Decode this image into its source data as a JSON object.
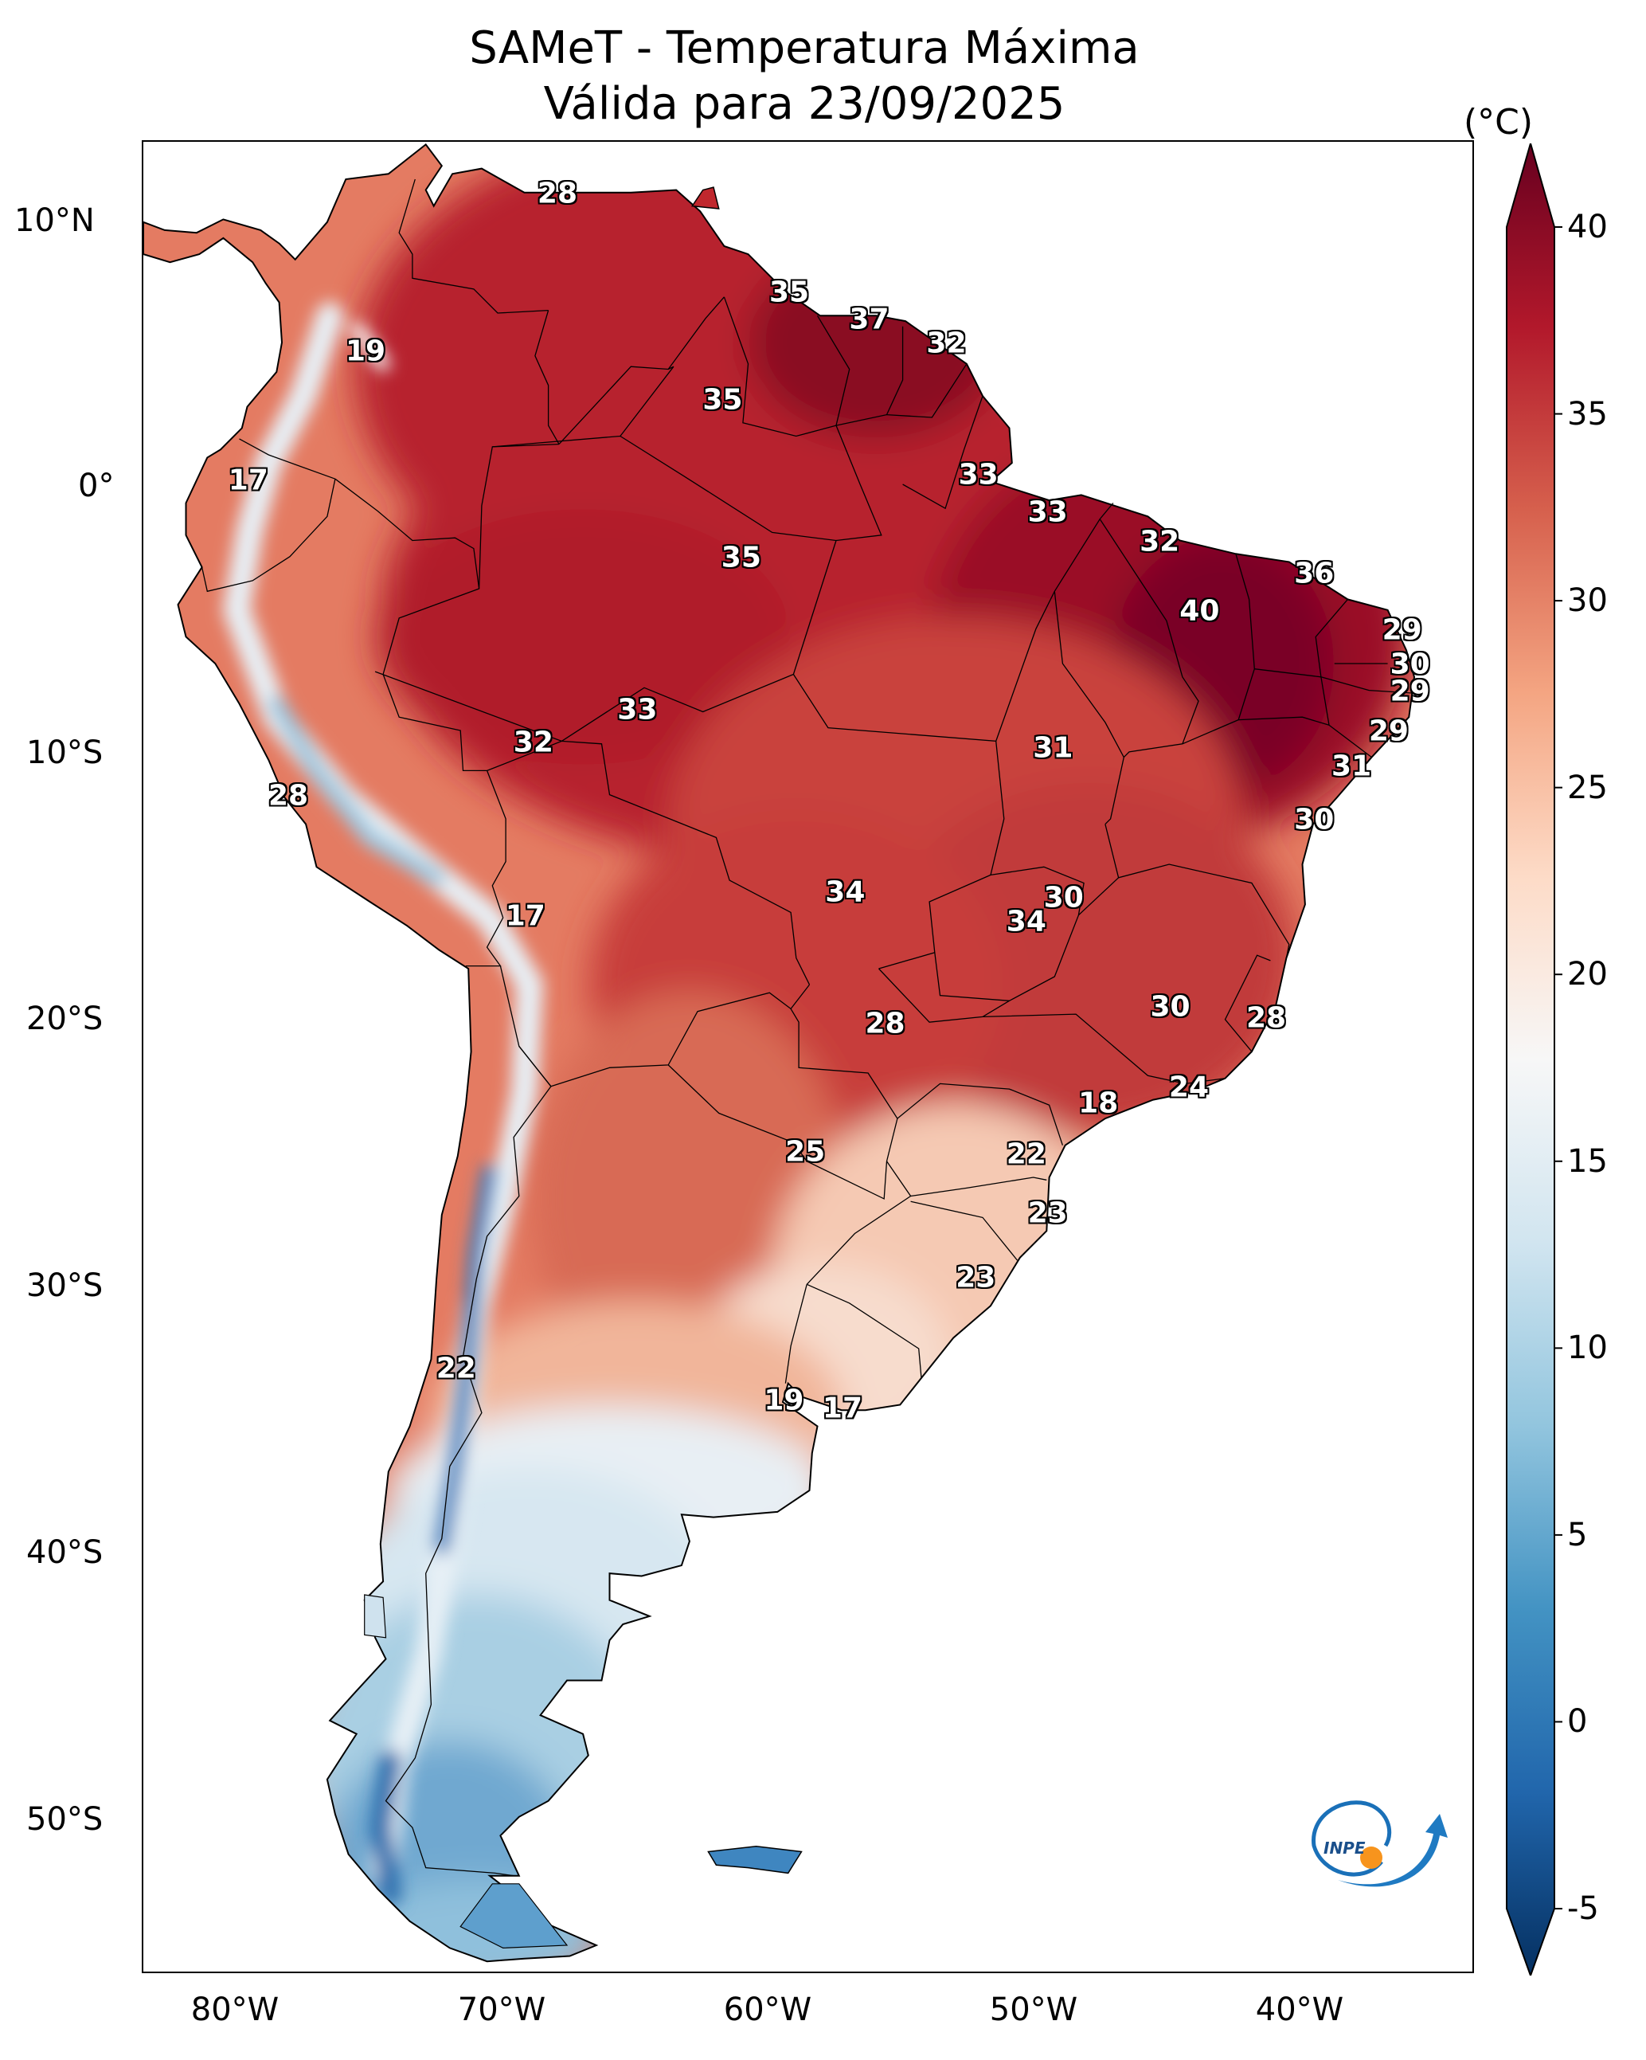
{
  "title_line1": "SAMeT - Temperatura Máxima",
  "title_line2": "Válida para 23/09/2025",
  "colorbar": {
    "unit": "(°C)",
    "ticks": [
      "40",
      "35",
      "30",
      "25",
      "20",
      "15",
      "10",
      "5",
      "0",
      "-5"
    ],
    "range": [
      -5,
      40
    ],
    "colormap": "RdBu_r",
    "colors": [
      "#053061",
      "#2166ac",
      "#4393c3",
      "#92c5de",
      "#d1e5f0",
      "#f7f7f7",
      "#fddbc7",
      "#f4a582",
      "#d6604d",
      "#b2182b",
      "#67001f"
    ]
  },
  "axes": {
    "lat_labels": [
      "10°N",
      "0°",
      "10°S",
      "20°S",
      "30°S",
      "40°S",
      "50°S"
    ],
    "lon_labels": [
      "80°W",
      "70°W",
      "60°W",
      "50°W",
      "40°W"
    ],
    "lat_range": [
      -56,
      12.5
    ],
    "lon_range": [
      -82.5,
      -32.5
    ]
  },
  "logo": {
    "text": "INPE",
    "icon": "inpe-logo-icon"
  },
  "city_temperatures": [
    {
      "value": "28",
      "lat": 10.5,
      "lon": -66.9
    },
    {
      "value": "35",
      "lat": 6.8,
      "lon": -58.2
    },
    {
      "value": "37",
      "lat": 5.8,
      "lon": -55.2
    },
    {
      "value": "32",
      "lat": 4.9,
      "lon": -52.3
    },
    {
      "value": "19",
      "lat": 4.6,
      "lon": -74.1
    },
    {
      "value": "35",
      "lat": 2.8,
      "lon": -60.7
    },
    {
      "value": "17",
      "lat": -0.2,
      "lon": -78.5
    },
    {
      "value": "33",
      "lat": 0.0,
      "lon": -51.1
    },
    {
      "value": "33",
      "lat": -1.4,
      "lon": -48.5
    },
    {
      "value": "32",
      "lat": -2.5,
      "lon": -44.3
    },
    {
      "value": "35",
      "lat": -3.1,
      "lon": -60.0
    },
    {
      "value": "36",
      "lat": -3.7,
      "lon": -38.5
    },
    {
      "value": "40",
      "lat": -5.1,
      "lon": -42.8
    },
    {
      "value": "29",
      "lat": -5.8,
      "lon": -35.2
    },
    {
      "value": "30",
      "lat": -7.1,
      "lon": -34.9
    },
    {
      "value": "29",
      "lat": -8.1,
      "lon": -34.9
    },
    {
      "value": "33",
      "lat": -8.8,
      "lon": -63.9
    },
    {
      "value": "32",
      "lat": -10.0,
      "lon": -67.8
    },
    {
      "value": "31",
      "lat": -10.2,
      "lon": -48.3
    },
    {
      "value": "29",
      "lat": -9.6,
      "lon": -35.7
    },
    {
      "value": "31",
      "lat": -10.9,
      "lon": -37.1
    },
    {
      "value": "28",
      "lat": -12.0,
      "lon": -77.0
    },
    {
      "value": "30",
      "lat": -12.9,
      "lon": -38.5
    },
    {
      "value": "34",
      "lat": -15.6,
      "lon": -56.1
    },
    {
      "value": "30",
      "lat": -15.8,
      "lon": -47.9
    },
    {
      "value": "34",
      "lat": -16.7,
      "lon": -49.3
    },
    {
      "value": "17",
      "lat": -16.5,
      "lon": -68.1
    },
    {
      "value": "30",
      "lat": -19.9,
      "lon": -43.9
    },
    {
      "value": "28",
      "lat": -20.3,
      "lon": -40.3
    },
    {
      "value": "28",
      "lat": -20.5,
      "lon": -54.6
    },
    {
      "value": "24",
      "lat": -22.9,
      "lon": -43.2
    },
    {
      "value": "18",
      "lat": -23.5,
      "lon": -46.6
    },
    {
      "value": "25",
      "lat": -25.3,
      "lon": -57.6
    },
    {
      "value": "22",
      "lat": -25.4,
      "lon": -49.3
    },
    {
      "value": "23",
      "lat": -27.6,
      "lon": -48.5
    },
    {
      "value": "23",
      "lat": -30.0,
      "lon": -51.2
    },
    {
      "value": "22",
      "lat": -33.4,
      "lon": -70.7
    },
    {
      "value": "19",
      "lat": -34.6,
      "lon": -58.4
    },
    {
      "value": "17",
      "lat": -34.9,
      "lon": -56.2
    }
  ]
}
